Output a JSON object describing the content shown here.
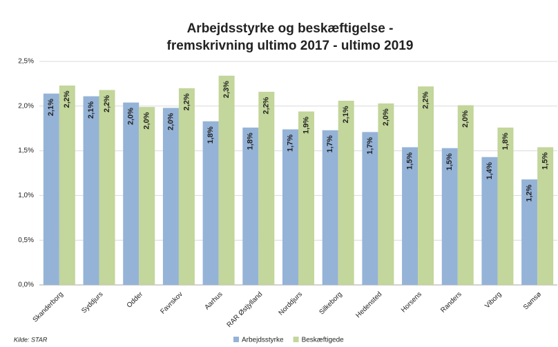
{
  "chart_data": {
    "type": "bar",
    "title": "Arbejdsstyrke og beskæftigelse -",
    "subtitle": "fremskrivning ultimo 2017 - ultimo 2019",
    "source": "Kilde: STAR",
    "categories": [
      "Skanderborg",
      "Syddjurs",
      "Odder",
      "Favrskov",
      "Aarhus",
      "RAR Østjylland",
      "Norddjurs",
      "Silkeborg",
      "Hedensted",
      "Horsens",
      "Randers",
      "Viborg",
      "Samsø"
    ],
    "series": [
      {
        "name": "Arbejdsstyrke",
        "color": "#95b3d7",
        "values": [
          2.14,
          2.11,
          2.04,
          1.98,
          1.83,
          1.76,
          1.74,
          1.73,
          1.71,
          1.54,
          1.53,
          1.43,
          1.18
        ],
        "value_labels": [
          "2,1%",
          "2,1%",
          "2,0%",
          "2,0%",
          "1,8%",
          "1,8%",
          "1,7%",
          "1,7%",
          "1,7%",
          "1,5%",
          "1,5%",
          "1,4%",
          "1,2%"
        ]
      },
      {
        "name": "Beskæftigede",
        "color": "#c3d69b",
        "values": [
          2.23,
          2.18,
          1.99,
          2.2,
          2.34,
          2.16,
          1.94,
          2.06,
          2.03,
          2.22,
          2.01,
          1.76,
          1.54
        ],
        "value_labels": [
          "2,2%",
          "2,2%",
          "2,0%",
          "2,2%",
          "2,3%",
          "2,2%",
          "1,9%",
          "2,1%",
          "2,0%",
          "2,2%",
          "2,0%",
          "1,8%",
          "1,5%"
        ]
      }
    ],
    "ylim": [
      0,
      2.5
    ],
    "yticks": [
      {
        "value": 0,
        "label": "0,0%"
      },
      {
        "value": 0.5,
        "label": "0,5%"
      },
      {
        "value": 1,
        "label": "1,0%"
      },
      {
        "value": 1.5,
        "label": "1,5%"
      },
      {
        "value": 2,
        "label": "2,0%"
      },
      {
        "value": 2.5,
        "label": "2,5%"
      }
    ],
    "grid": true,
    "legend": "bottom"
  }
}
